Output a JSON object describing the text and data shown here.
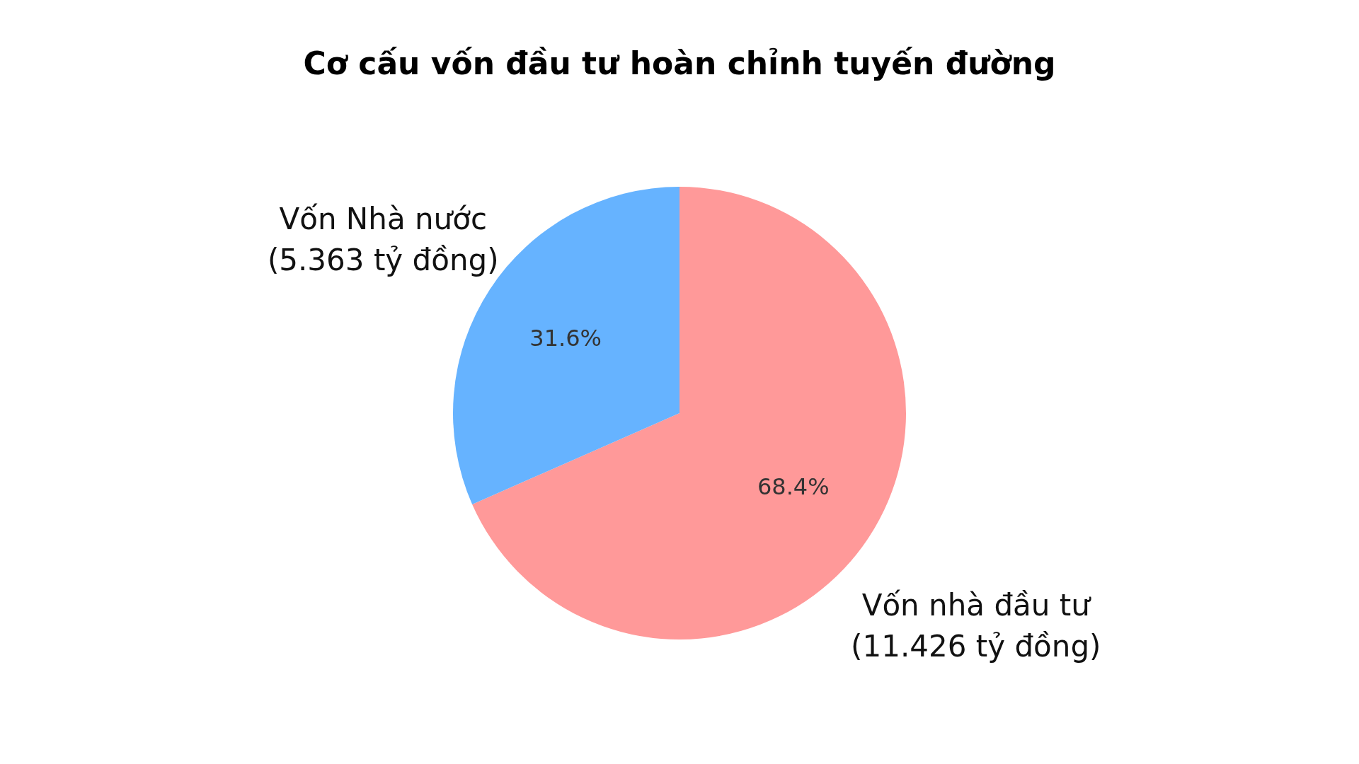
{
  "chart_data": {
    "type": "pie",
    "title": "Cơ cấu vốn đầu tư hoàn chỉnh tuyến đường",
    "categories": [
      "Vốn nhà đầu tư\n(11.426 tỷ đồng)",
      "Vốn Nhà nước\n(5.363 tỷ đồng)"
    ],
    "values": [
      68.4,
      31.6
    ],
    "colors": [
      "#ff9999",
      "#66b3ff"
    ],
    "value_labels": [
      "68.4%",
      "31.6%"
    ],
    "legend": false
  }
}
